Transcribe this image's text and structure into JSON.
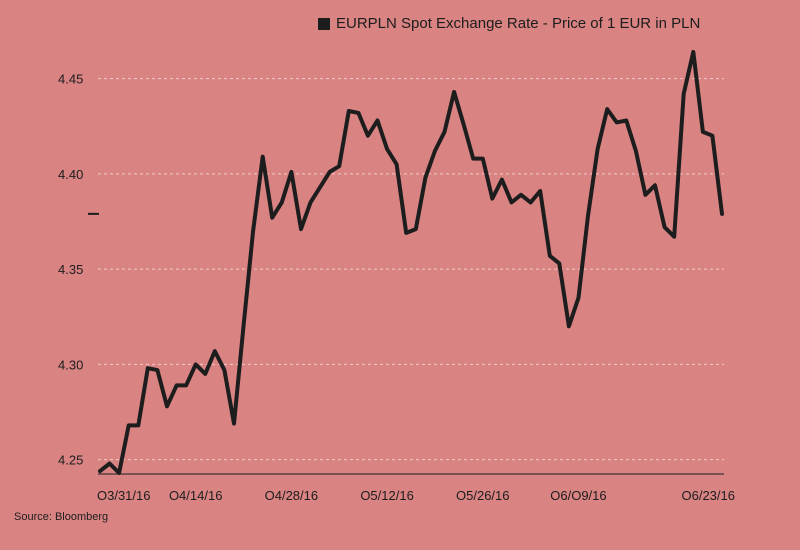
{
  "legend": {
    "label": "EURPLN Spot Exchange Rate - Price of 1 EUR in PLN",
    "color": "#1d1d1d"
  },
  "source": "Source: Bloomberg",
  "colors": {
    "background": "#d98383",
    "line": "#1d1d1d",
    "grid": "#f2c9c9"
  },
  "chart_data": {
    "type": "line",
    "title": "",
    "xlabel": "",
    "ylabel": "",
    "ylim": [
      4.243,
      4.465
    ],
    "yticks": [
      4.25,
      4.3,
      4.35,
      4.4,
      4.45
    ],
    "ytick_labels": [
      "4.25",
      "4.30",
      "4.35",
      "4.40",
      "4.45"
    ],
    "ytick_marker": 4.379,
    "grid": true,
    "legend_position": "top",
    "xtick_labels": [
      "O3/31/16",
      "O4/14/16",
      "O4/28/16",
      "O5/12/16",
      "O5/26/16",
      "O6/O9/16",
      "O6/23/16"
    ],
    "xtick_index": [
      0,
      10,
      20,
      30,
      40,
      50,
      60
    ],
    "series": [
      {
        "name": "EURPLN Spot Exchange Rate - Price of 1 EUR in PLN",
        "values": [
          4.244,
          4.248,
          4.243,
          4.268,
          4.268,
          4.298,
          4.297,
          4.278,
          4.289,
          4.289,
          4.3,
          4.295,
          4.307,
          4.297,
          4.269,
          4.32,
          4.37,
          4.409,
          4.377,
          4.385,
          4.401,
          4.371,
          4.385,
          4.393,
          4.401,
          4.404,
          4.433,
          4.432,
          4.42,
          4.428,
          4.413,
          4.405,
          4.369,
          4.371,
          4.398,
          4.412,
          4.422,
          4.443,
          4.426,
          4.408,
          4.408,
          4.387,
          4.397,
          4.385,
          4.389,
          4.385,
          4.391,
          4.357,
          4.353,
          4.32,
          4.335,
          4.378,
          4.413,
          4.434,
          4.427,
          4.428,
          4.412,
          4.389,
          4.394,
          4.372,
          4.367,
          4.442,
          4.464,
          4.422,
          4.42,
          4.379
        ]
      }
    ]
  }
}
